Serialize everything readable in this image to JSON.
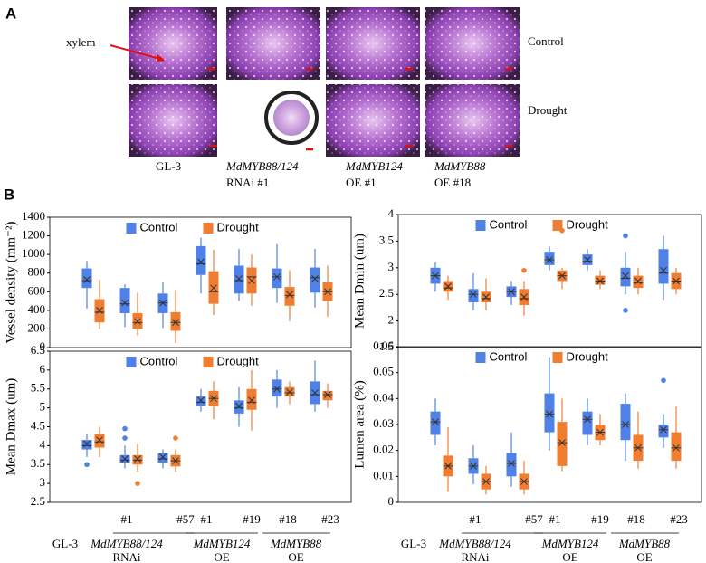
{
  "panel_a": {
    "label": "A",
    "annotation": "xylem",
    "rows": [
      "Control",
      "Drought"
    ],
    "columns": [
      {
        "line1": "GL-3"
      },
      {
        "line1": "MdMYB88/124",
        "line2": "RNAi #1"
      },
      {
        "line1": "MdMYB124",
        "line2": "OE #1"
      },
      {
        "line1": "MdMYB88",
        "line2": "OE #18"
      }
    ]
  },
  "panel_b_label": "B",
  "chart_data": [
    {
      "type": "box",
      "ylabel": "Vessel density (mm⁻²)",
      "ylim": [
        0,
        1400
      ],
      "yticks": [
        0,
        200,
        400,
        600,
        800,
        1000,
        1200,
        1400
      ],
      "series": [
        {
          "name": "Control",
          "color": "#4f81e6",
          "boxes": [
            {
              "low": 420,
              "q1": 640,
              "median": 720,
              "q3": 850,
              "high": 930,
              "mean": 730
            },
            {
              "low": 220,
              "q1": 370,
              "median": 470,
              "q3": 640,
              "high": 680,
              "mean": 480
            },
            {
              "low": 210,
              "q1": 370,
              "median": 480,
              "q3": 580,
              "high": 700,
              "mean": 480
            },
            {
              "low": 580,
              "q1": 780,
              "median": 900,
              "q3": 1090,
              "high": 1180,
              "mean": 920
            },
            {
              "low": 500,
              "q1": 580,
              "median": 720,
              "q3": 880,
              "high": 1060,
              "mean": 740
            },
            {
              "low": 480,
              "q1": 640,
              "median": 760,
              "q3": 850,
              "high": 1110,
              "mean": 760
            },
            {
              "low": 430,
              "q1": 590,
              "median": 750,
              "q3": 860,
              "high": 1060,
              "mean": 740
            }
          ]
        },
        {
          "name": "Drought",
          "color": "#ef7d32",
          "boxes": [
            {
              "low": 200,
              "q1": 270,
              "median": 380,
              "q3": 520,
              "high": 730,
              "mean": 400
            },
            {
              "low": 130,
              "q1": 200,
              "median": 270,
              "q3": 370,
              "high": 590,
              "mean": 280
            },
            {
              "low": 50,
              "q1": 180,
              "median": 270,
              "q3": 380,
              "high": 620,
              "mean": 270
            },
            {
              "low": 350,
              "q1": 470,
              "median": 600,
              "q3": 820,
              "high": 1050,
              "mean": 640
            },
            {
              "low": 450,
              "q1": 580,
              "median": 760,
              "q3": 860,
              "high": 1000,
              "mean": 720
            },
            {
              "low": 280,
              "q1": 450,
              "median": 560,
              "q3": 650,
              "high": 830,
              "mean": 570
            },
            {
              "low": 330,
              "q1": 500,
              "median": 600,
              "q3": 700,
              "high": 880,
              "mean": 600
            }
          ]
        }
      ]
    },
    {
      "type": "box",
      "ylabel": "Mean Dmin (um)",
      "ylim": [
        1.5,
        4
      ],
      "yticks": [
        1.5,
        2,
        2.5,
        3,
        3.5,
        4
      ],
      "series": [
        {
          "name": "Control",
          "color": "#4f81e6",
          "boxes": [
            {
              "low": 2.55,
              "q1": 2.7,
              "median": 2.85,
              "q3": 3.0,
              "high": 3.1,
              "mean": 2.85
            },
            {
              "low": 2.2,
              "q1": 2.35,
              "median": 2.5,
              "q3": 2.6,
              "high": 2.9,
              "mean": 2.5
            },
            {
              "low": 2.3,
              "q1": 2.45,
              "median": 2.55,
              "q3": 2.65,
              "high": 2.75,
              "mean": 2.55
            },
            {
              "low": 2.95,
              "q1": 3.05,
              "median": 3.15,
              "q3": 3.3,
              "high": 3.4,
              "mean": 3.15
            },
            {
              "low": 2.95,
              "q1": 3.05,
              "median": 3.12,
              "q3": 3.25,
              "high": 3.35,
              "mean": 3.15
            },
            {
              "low": 2.5,
              "q1": 2.65,
              "median": 2.8,
              "q3": 3.0,
              "high": 3.3,
              "mean": 2.85,
              "outliers": [
                3.6,
                2.2
              ]
            },
            {
              "low": 2.4,
              "q1": 2.7,
              "median": 2.9,
              "q3": 3.35,
              "high": 3.6,
              "mean": 2.95
            }
          ]
        },
        {
          "name": "Drought",
          "color": "#ef7d32",
          "boxes": [
            {
              "low": 2.4,
              "q1": 2.55,
              "median": 2.62,
              "q3": 2.75,
              "high": 2.85,
              "mean": 2.65
            },
            {
              "low": 2.2,
              "q1": 2.35,
              "median": 2.42,
              "q3": 2.55,
              "high": 2.8,
              "mean": 2.45
            },
            {
              "low": 2.1,
              "q1": 2.3,
              "median": 2.42,
              "q3": 2.6,
              "high": 2.75,
              "mean": 2.45,
              "outliers": [
                2.95
              ]
            },
            {
              "low": 2.6,
              "q1": 2.75,
              "median": 2.85,
              "q3": 2.95,
              "high": 3.0,
              "mean": 2.85,
              "outliers": [
                3.7
              ]
            },
            {
              "low": 2.6,
              "q1": 2.68,
              "median": 2.75,
              "q3": 2.85,
              "high": 2.95,
              "mean": 2.75
            },
            {
              "low": 2.5,
              "q1": 2.62,
              "median": 2.72,
              "q3": 2.85,
              "high": 3.0,
              "mean": 2.75
            },
            {
              "low": 2.5,
              "q1": 2.6,
              "median": 2.75,
              "q3": 2.9,
              "high": 3.0,
              "mean": 2.75
            }
          ]
        }
      ]
    },
    {
      "type": "box",
      "ylabel": "Mean Dmax (um)",
      "ylim": [
        2.5,
        6.5
      ],
      "yticks": [
        2.5,
        3,
        3.5,
        4,
        4.5,
        5,
        5.5,
        6,
        6.5
      ],
      "categories": [
        "GL-3",
        "#1",
        "#57",
        "#1",
        "#19",
        "#18",
        "#23"
      ],
      "groups": [
        {
          "name": "MdMYB88/124",
          "sub": "RNAi"
        },
        {
          "name": "MdMYB124",
          "sub": "OE"
        },
        {
          "name": "MdMYB88",
          "sub": "OE"
        }
      ],
      "series": [
        {
          "name": "Control",
          "color": "#4f81e6",
          "boxes": [
            {
              "low": 3.7,
              "q1": 3.9,
              "median": 4.0,
              "q3": 4.15,
              "high": 4.3,
              "mean": 4.05,
              "outliers": [
                3.5
              ]
            },
            {
              "low": 3.4,
              "q1": 3.55,
              "median": 3.62,
              "q3": 3.75,
              "high": 4.0,
              "mean": 3.65,
              "outliers": [
                4.45,
                4.2
              ]
            },
            {
              "low": 3.4,
              "q1": 3.55,
              "median": 3.65,
              "q3": 3.8,
              "high": 3.9,
              "mean": 3.7
            },
            {
              "low": 4.9,
              "q1": 5.05,
              "median": 5.15,
              "q3": 5.3,
              "high": 5.5,
              "mean": 5.2
            },
            {
              "low": 4.5,
              "q1": 4.85,
              "median": 5.0,
              "q3": 5.2,
              "high": 5.55,
              "mean": 5.05
            },
            {
              "low": 5.0,
              "q1": 5.3,
              "median": 5.5,
              "q3": 5.75,
              "high": 6.0,
              "mean": 5.5
            },
            {
              "low": 4.9,
              "q1": 5.1,
              "median": 5.35,
              "q3": 5.7,
              "high": 6.25,
              "mean": 5.4
            }
          ]
        },
        {
          "name": "Drought",
          "color": "#ef7d32",
          "boxes": [
            {
              "low": 3.7,
              "q1": 3.95,
              "median": 4.1,
              "q3": 4.3,
              "high": 4.5,
              "mean": 4.15
            },
            {
              "low": 3.3,
              "q1": 3.5,
              "median": 3.62,
              "q3": 3.75,
              "high": 4.05,
              "mean": 3.65,
              "outliers": [
                3.0
              ]
            },
            {
              "low": 3.3,
              "q1": 3.45,
              "median": 3.6,
              "q3": 3.75,
              "high": 3.9,
              "mean": 3.6,
              "outliers": [
                4.2
              ]
            },
            {
              "low": 4.7,
              "q1": 5.05,
              "median": 5.25,
              "q3": 5.45,
              "high": 5.7,
              "mean": 5.25
            },
            {
              "low": 4.4,
              "q1": 4.95,
              "median": 5.15,
              "q3": 5.5,
              "high": 6.0,
              "mean": 5.2
            },
            {
              "low": 5.1,
              "q1": 5.3,
              "median": 5.4,
              "q3": 5.55,
              "high": 5.7,
              "mean": 5.42
            },
            {
              "low": 5.0,
              "q1": 5.2,
              "median": 5.35,
              "q3": 5.45,
              "high": 5.65,
              "mean": 5.35
            }
          ]
        }
      ]
    },
    {
      "type": "box",
      "ylabel": "Lumen area (%)",
      "ylim": [
        0,
        0.06
      ],
      "yticks": [
        0,
        0.01,
        0.02,
        0.03,
        0.04,
        0.05,
        0.06
      ],
      "categories": [
        "GL-3",
        "#1",
        "#57",
        "#1",
        "#19",
        "#18",
        "#23"
      ],
      "groups": [
        {
          "name": "MdMYB88/124",
          "sub": "RNAi"
        },
        {
          "name": "MdMYB124",
          "sub": "OE"
        },
        {
          "name": "MdMYB88",
          "sub": "OE"
        }
      ],
      "series": [
        {
          "name": "Control",
          "color": "#4f81e6",
          "boxes": [
            {
              "low": 0.022,
              "q1": 0.026,
              "median": 0.031,
              "q3": 0.035,
              "high": 0.04,
              "mean": 0.031
            },
            {
              "low": 0.007,
              "q1": 0.011,
              "median": 0.014,
              "q3": 0.017,
              "high": 0.022,
              "mean": 0.014
            },
            {
              "low": 0.006,
              "q1": 0.01,
              "median": 0.015,
              "q3": 0.019,
              "high": 0.027,
              "mean": 0.015
            },
            {
              "low": 0.02,
              "q1": 0.027,
              "median": 0.034,
              "q3": 0.042,
              "high": 0.056,
              "mean": 0.034
            },
            {
              "low": 0.022,
              "q1": 0.026,
              "median": 0.032,
              "q3": 0.035,
              "high": 0.04,
              "mean": 0.032
            },
            {
              "low": 0.016,
              "q1": 0.024,
              "median": 0.03,
              "q3": 0.038,
              "high": 0.042,
              "mean": 0.03
            },
            {
              "low": 0.021,
              "q1": 0.025,
              "median": 0.028,
              "q3": 0.03,
              "high": 0.034,
              "mean": 0.028,
              "outliers": [
                0.047
              ]
            }
          ]
        },
        {
          "name": "Drought",
          "color": "#ef7d32",
          "boxes": [
            {
              "low": 0.004,
              "q1": 0.01,
              "median": 0.014,
              "q3": 0.018,
              "high": 0.029,
              "mean": 0.014
            },
            {
              "low": 0.003,
              "q1": 0.005,
              "median": 0.008,
              "q3": 0.011,
              "high": 0.014,
              "mean": 0.008
            },
            {
              "low": 0.003,
              "q1": 0.005,
              "median": 0.008,
              "q3": 0.011,
              "high": 0.016,
              "mean": 0.008
            },
            {
              "low": 0.012,
              "q1": 0.014,
              "median": 0.023,
              "q3": 0.031,
              "high": 0.04,
              "mean": 0.023
            },
            {
              "low": 0.022,
              "q1": 0.024,
              "median": 0.027,
              "q3": 0.03,
              "high": 0.034,
              "mean": 0.027
            },
            {
              "low": 0.013,
              "q1": 0.016,
              "median": 0.021,
              "q3": 0.026,
              "high": 0.035,
              "mean": 0.021
            },
            {
              "low": 0.013,
              "q1": 0.016,
              "median": 0.021,
              "q3": 0.027,
              "high": 0.037,
              "mean": 0.021
            }
          ]
        }
      ]
    }
  ]
}
